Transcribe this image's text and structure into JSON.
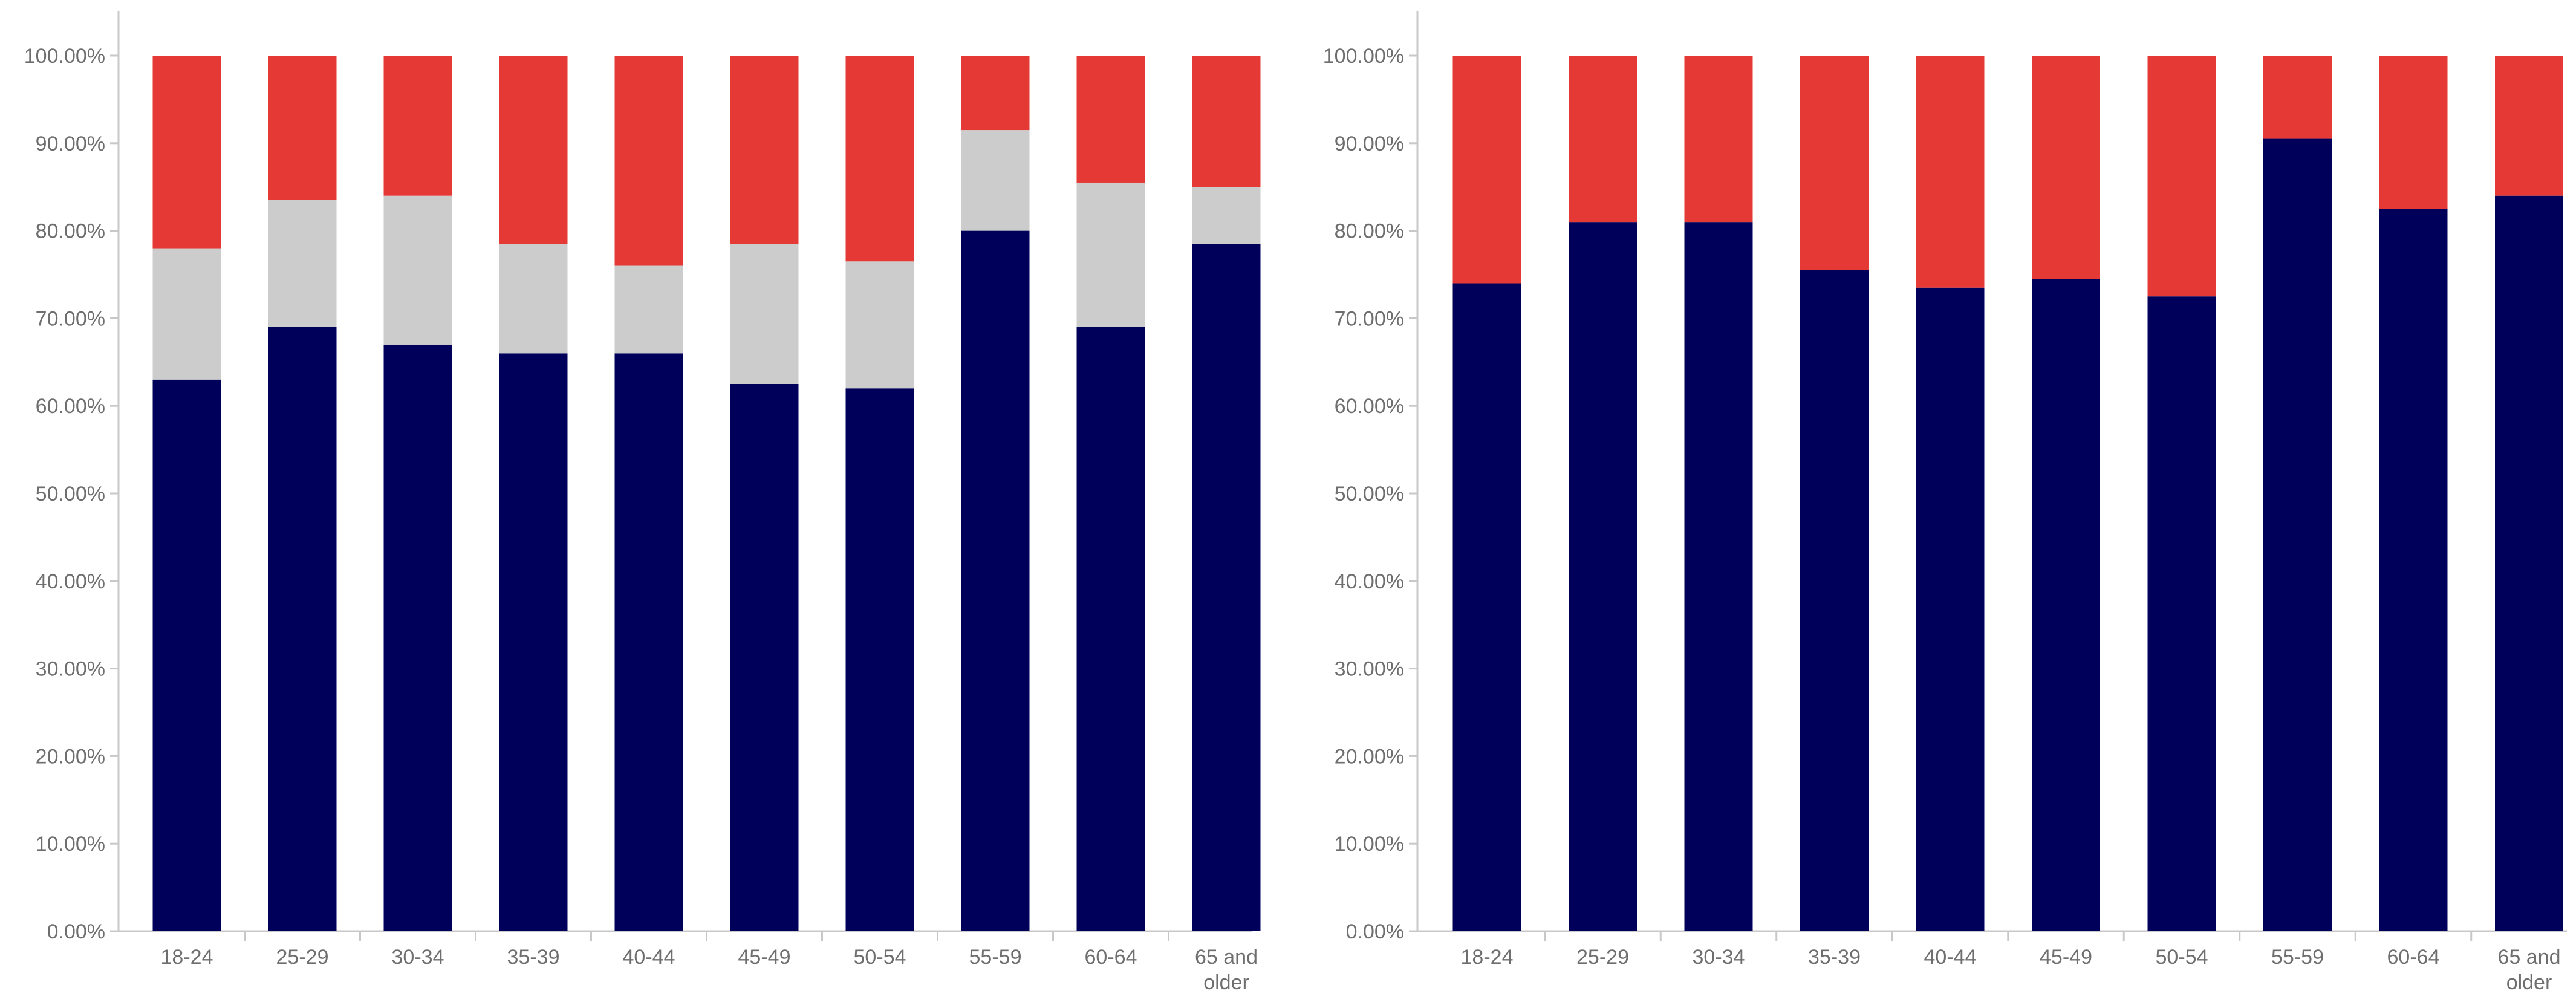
{
  "colors": {
    "navy": "#00005a",
    "gray": "#cccccc",
    "red": "#e53935",
    "axis": "#c8c8c8",
    "text": "#6e6e6e"
  },
  "chart_data": [
    {
      "type": "bar",
      "stacked": true,
      "title": "",
      "xlabel": "",
      "ylabel": "",
      "ylim": [
        0,
        100
      ],
      "yticks": [
        "0.00%",
        "10.00%",
        "20.00%",
        "30.00%",
        "40.00%",
        "50.00%",
        "60.00%",
        "70.00%",
        "80.00%",
        "90.00%",
        "100.00%"
      ],
      "categories": [
        [
          "18-24"
        ],
        [
          "25-29"
        ],
        [
          "30-34"
        ],
        [
          "35-39"
        ],
        [
          "40-44"
        ],
        [
          "45-49"
        ],
        [
          "50-54"
        ],
        [
          "55-59"
        ],
        [
          "60-64"
        ],
        [
          "65 and",
          "older"
        ]
      ],
      "series": [
        {
          "name": "navy",
          "color": "#00005a",
          "values": [
            63.0,
            69.0,
            67.0,
            66.0,
            66.0,
            62.5,
            62.0,
            80.0,
            69.0,
            78.5
          ]
        },
        {
          "name": "gray",
          "color": "#cccccc",
          "values": [
            15.0,
            14.5,
            17.0,
            12.5,
            10.0,
            16.0,
            14.5,
            11.5,
            16.5,
            6.5
          ]
        },
        {
          "name": "red",
          "color": "#e53935",
          "values": [
            22.0,
            16.5,
            16.0,
            21.5,
            24.0,
            21.5,
            23.5,
            8.5,
            14.5,
            15.0
          ]
        }
      ]
    },
    {
      "type": "bar",
      "stacked": true,
      "title": "",
      "xlabel": "",
      "ylabel": "",
      "ylim": [
        0,
        100
      ],
      "yticks": [
        "0.00%",
        "10.00%",
        "20.00%",
        "30.00%",
        "40.00%",
        "50.00%",
        "60.00%",
        "70.00%",
        "80.00%",
        "90.00%",
        "100.00%"
      ],
      "categories": [
        [
          "18-24"
        ],
        [
          "25-29"
        ],
        [
          "30-34"
        ],
        [
          "35-39"
        ],
        [
          "40-44"
        ],
        [
          "45-49"
        ],
        [
          "50-54"
        ],
        [
          "55-59"
        ],
        [
          "60-64"
        ],
        [
          "65 and",
          "older"
        ]
      ],
      "series": [
        {
          "name": "navy",
          "color": "#00005a",
          "values": [
            74.0,
            81.0,
            81.0,
            75.5,
            73.5,
            74.5,
            72.5,
            90.5,
            82.5,
            84.0
          ]
        },
        {
          "name": "red",
          "color": "#e53935",
          "values": [
            26.0,
            19.0,
            19.0,
            24.5,
            26.5,
            25.5,
            27.5,
            9.5,
            17.5,
            16.0
          ]
        }
      ]
    }
  ]
}
